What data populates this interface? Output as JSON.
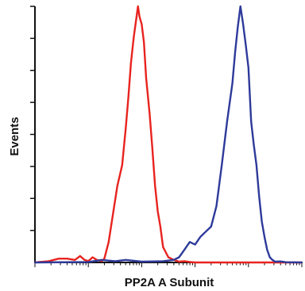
{
  "chart_data": {
    "type": "line",
    "title": "",
    "xlabel": "PP2A A Subunit",
    "ylabel": "Events",
    "x_scale": "log",
    "xlim": [
      1,
      100000
    ],
    "ylim": [
      0,
      100
    ],
    "grid": false,
    "legend": "none",
    "series": [
      {
        "color": "#e8231f",
        "x": [
          1,
          1.8,
          2.8,
          4.0,
          5.6,
          7.0,
          8.5,
          10,
          12,
          14.4,
          17.8,
          20,
          24,
          29,
          35,
          43,
          50,
          56,
          63,
          71,
          79,
          85,
          91,
          100,
          110,
          121,
          141,
          158,
          178,
          200,
          224,
          251,
          316,
          400,
          500,
          631,
          800,
          1000,
          100000
        ],
        "y": [
          0,
          0.5,
          1.5,
          1.5,
          1,
          2.5,
          1,
          0.5,
          2,
          1,
          0.5,
          1.5,
          8,
          19,
          30,
          38,
          52,
          64,
          78,
          88,
          95,
          100,
          96,
          93,
          86,
          72,
          58,
          45,
          30,
          20,
          14,
          6,
          2,
          1,
          0.3,
          0.5,
          0.2,
          0,
          0
        ]
      },
      {
        "color": "#2e3a9a",
        "x": [
          1,
          10,
          17.8,
          31.6,
          50,
          100,
          251,
          398,
          501,
          631,
          794,
          1000,
          1259,
          1585,
          2000,
          2512,
          3162,
          3981,
          5012,
          5623,
          6310,
          7079,
          7943,
          8913,
          10000,
          11220,
          12589,
          14125,
          15849,
          17783,
          19953,
          22387,
          25119,
          28184,
          31623,
          39811,
          50119,
          100000
        ],
        "y": [
          0,
          0.2,
          1,
          0.5,
          1,
          0.3,
          0.5,
          1,
          2,
          5,
          8,
          7,
          10,
          12,
          14,
          22,
          38,
          55,
          70,
          82,
          92,
          100,
          93,
          85,
          76,
          55,
          46,
          38,
          26,
          16,
          10,
          5,
          2,
          1,
          0.3,
          0.4,
          0.1,
          0
        ]
      }
    ]
  }
}
